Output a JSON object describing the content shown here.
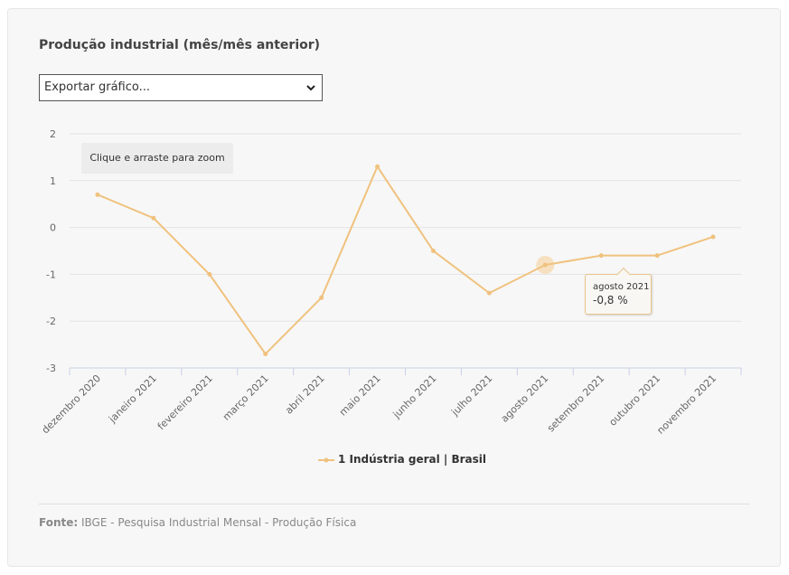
{
  "title": "Produção industrial (mês/mês anterior)",
  "export_select": {
    "value": "Exportar gráfico..."
  },
  "zoom_hint": "Clique e arraste para zoom",
  "tooltip": {
    "date": "agosto 2021",
    "value": "-0,8 %"
  },
  "legend": {
    "label": "1 Indústria geral | Brasil"
  },
  "source": {
    "label": "Fonte:",
    "text": "IBGE - Pesquisa Industrial Mensal - Produção Física"
  },
  "colors": {
    "series": "#f0c27e",
    "highlight": "#f5d9b0"
  },
  "chart_data": {
    "type": "line",
    "categories": [
      "dezembro 2020",
      "janeiro 2021",
      "fevereiro 2021",
      "março 2021",
      "abril 2021",
      "maio 2021",
      "junho 2021",
      "julho 2021",
      "agosto 2021",
      "setembro 2021",
      "outubro 2021",
      "novembro 2021"
    ],
    "series": [
      {
        "name": "1 Indústria geral | Brasil",
        "values": [
          0.7,
          0.2,
          -1.0,
          -2.7,
          -1.5,
          1.3,
          -0.5,
          -1.4,
          -0.8,
          -0.6,
          -0.6,
          -0.2
        ]
      }
    ],
    "yticks": [
      2,
      1,
      0,
      -1,
      -2,
      -3
    ],
    "ylim": [
      -3,
      2
    ],
    "grid": true,
    "highlighted_category": "agosto 2021",
    "legend_position": "bottom"
  }
}
